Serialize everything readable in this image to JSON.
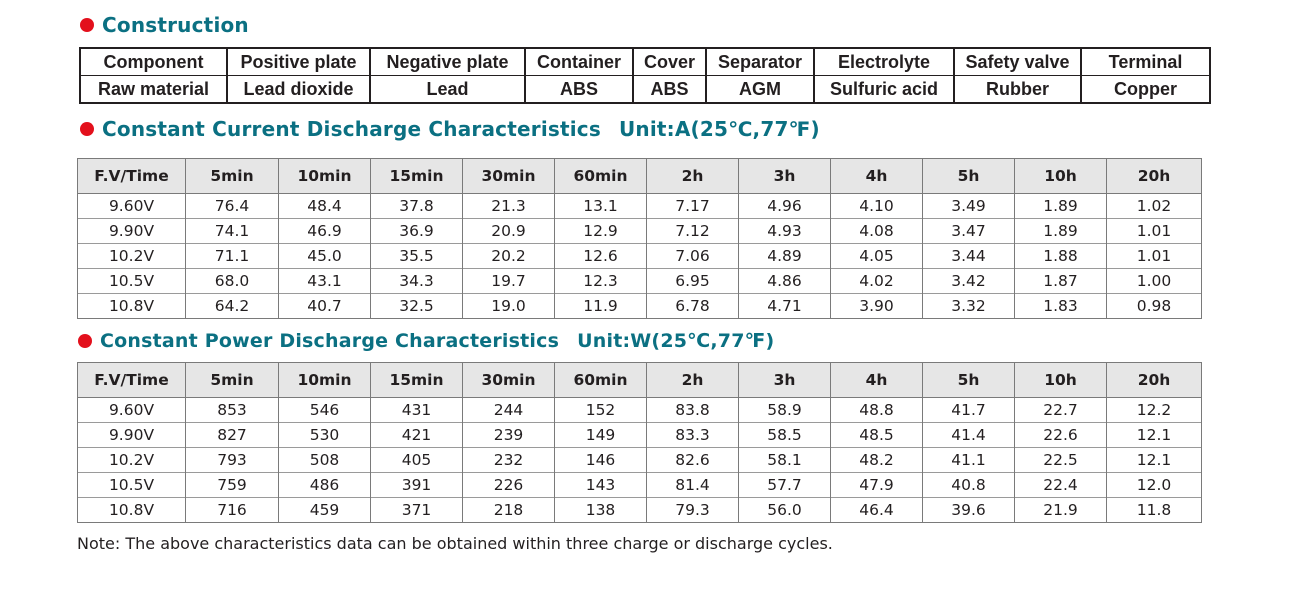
{
  "construction": {
    "title": "Construction",
    "header_row": [
      "Component",
      "Positive plate",
      "Negative plate",
      "Container",
      "Cover",
      "Separator",
      "Electrolyte",
      "Safety valve",
      "Terminal"
    ],
    "material_row": [
      "Raw material",
      "Lead dioxide",
      "Lead",
      "ABS",
      "ABS",
      "AGM",
      "Sulfuric acid",
      "Rubber",
      "Copper"
    ]
  },
  "current_table": {
    "title": "Constant Current Discharge Characteristics",
    "unit": "Unit:A(25℃,77℉)",
    "headers": [
      "F.V/Time",
      "5min",
      "10min",
      "15min",
      "30min",
      "60min",
      "2h",
      "3h",
      "4h",
      "5h",
      "10h",
      "20h"
    ],
    "rows": [
      [
        "9.60V",
        "76.4",
        "48.4",
        "37.8",
        "21.3",
        "13.1",
        "7.17",
        "4.96",
        "4.10",
        "3.49",
        "1.89",
        "1.02"
      ],
      [
        "9.90V",
        "74.1",
        "46.9",
        "36.9",
        "20.9",
        "12.9",
        "7.12",
        "4.93",
        "4.08",
        "3.47",
        "1.89",
        "1.01"
      ],
      [
        "10.2V",
        "71.1",
        "45.0",
        "35.5",
        "20.2",
        "12.6",
        "7.06",
        "4.89",
        "4.05",
        "3.44",
        "1.88",
        "1.01"
      ],
      [
        "10.5V",
        "68.0",
        "43.1",
        "34.3",
        "19.7",
        "12.3",
        "6.95",
        "4.86",
        "4.02",
        "3.42",
        "1.87",
        "1.00"
      ],
      [
        "10.8V",
        "64.2",
        "40.7",
        "32.5",
        "19.0",
        "11.9",
        "6.78",
        "4.71",
        "3.90",
        "3.32",
        "1.83",
        "0.98"
      ]
    ]
  },
  "power_table": {
    "title": "Constant Power Discharge Characteristics",
    "unit": "Unit:W(25℃,77℉)",
    "headers": [
      "F.V/Time",
      "5min",
      "10min",
      "15min",
      "30min",
      "60min",
      "2h",
      "3h",
      "4h",
      "5h",
      "10h",
      "20h"
    ],
    "rows": [
      [
        "9.60V",
        "853",
        "546",
        "431",
        "244",
        "152",
        "83.8",
        "58.9",
        "48.8",
        "41.7",
        "22.7",
        "12.2"
      ],
      [
        "9.90V",
        "827",
        "530",
        "421",
        "239",
        "149",
        "83.3",
        "58.5",
        "48.5",
        "41.4",
        "22.6",
        "12.1"
      ],
      [
        "10.2V",
        "793",
        "508",
        "405",
        "232",
        "146",
        "82.6",
        "58.1",
        "48.2",
        "41.1",
        "22.5",
        "12.1"
      ],
      [
        "10.5V",
        "759",
        "486",
        "391",
        "226",
        "143",
        "81.4",
        "57.7",
        "47.9",
        "40.8",
        "22.4",
        "12.0"
      ],
      [
        "10.8V",
        "716",
        "459",
        "371",
        "218",
        "138",
        "79.3",
        "56.0",
        "46.4",
        "39.6",
        "21.9",
        "11.8"
      ]
    ]
  },
  "note": "Note: The above characteristics data can be obtained within three charge or discharge cycles."
}
